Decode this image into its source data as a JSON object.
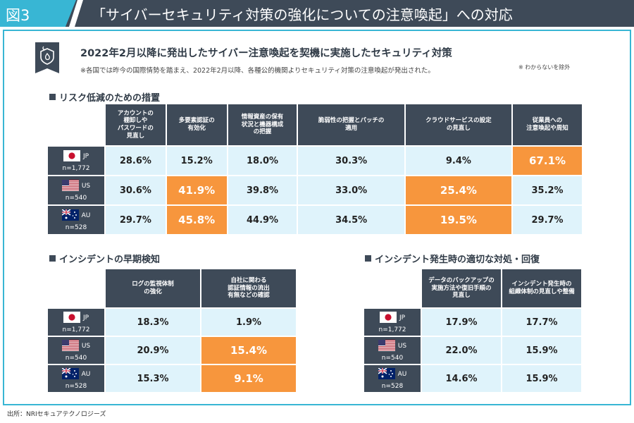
{
  "header": {
    "figure_label": "図3",
    "title": "「サイバーセキュリティ対策の強化についての注意喚起」への対応"
  },
  "main": {
    "title": "2022年2月以降に発出したサイバー注意喚起を契機に実施したセキュリティ対策",
    "note": "※各国では昨今の国際情勢を踏まえ、2022年2月以降、各種公的機関よりセキュリティ対策の注意喚起が発出された。"
  },
  "risk": {
    "title": "リスク低減のための措置",
    "note": "※ わからないを除外",
    "columns": [
      "アカウントの\n棚卸しや\nパスワードの\n見直し",
      "多要素認証の\n有効化",
      "情報資産の保有\n状況と機器構成\nの把握",
      "脆弱性の把握とパッチの\n適用",
      "クラウドサービスの設定\nの見直し",
      "従業員への\n注意喚起や周知"
    ],
    "rows": [
      {
        "country": "JP",
        "n": "n=1,772",
        "flag_icon": "japan-flag-icon",
        "values": [
          "28.6%",
          "15.2%",
          "18.0%",
          "30.3%",
          "9.4%",
          "67.1%"
        ],
        "highlight": [
          false,
          false,
          false,
          false,
          false,
          true
        ]
      },
      {
        "country": "US",
        "n": "n=540",
        "flag_icon": "us-flag-icon",
        "values": [
          "30.6%",
          "41.9%",
          "39.8%",
          "33.0%",
          "25.4%",
          "35.2%"
        ],
        "highlight": [
          false,
          true,
          false,
          false,
          true,
          false
        ]
      },
      {
        "country": "AU",
        "n": "n=528",
        "flag_icon": "australia-flag-icon",
        "values": [
          "29.7%",
          "45.8%",
          "44.9%",
          "34.5%",
          "19.5%",
          "29.7%"
        ],
        "highlight": [
          false,
          true,
          false,
          false,
          true,
          false
        ]
      }
    ]
  },
  "early": {
    "title": "インシデントの早期検知",
    "columns": [
      "ログの監視体制\nの強化",
      "自社に関わる\n認証情報の流出\n有無などの確認"
    ],
    "rows": [
      {
        "country": "JP",
        "n": "n=1,772",
        "flag_icon": "japan-flag-icon",
        "values": [
          "18.3%",
          "1.9%"
        ],
        "highlight": [
          false,
          false
        ]
      },
      {
        "country": "US",
        "n": "n=540",
        "flag_icon": "us-flag-icon",
        "values": [
          "20.9%",
          "15.4%"
        ],
        "highlight": [
          false,
          true
        ]
      },
      {
        "country": "AU",
        "n": "n=528",
        "flag_icon": "australia-flag-icon",
        "values": [
          "15.3%",
          "9.1%"
        ],
        "highlight": [
          false,
          true
        ]
      }
    ]
  },
  "response": {
    "title": "インシデント発生時の適切な対処・回復",
    "columns": [
      "データのバックアップの\n実施方法や復旧手順の\n見直し",
      "インシデント発生時の\n組織体制の見直しや整備"
    ],
    "rows": [
      {
        "country": "JP",
        "n": "n=1,772",
        "flag_icon": "japan-flag-icon",
        "values": [
          "17.9%",
          "17.7%"
        ],
        "highlight": [
          false,
          false
        ]
      },
      {
        "country": "US",
        "n": "n=540",
        "flag_icon": "us-flag-icon",
        "values": [
          "22.0%",
          "15.9%"
        ],
        "highlight": [
          false,
          false
        ]
      },
      {
        "country": "AU",
        "n": "n=528",
        "flag_icon": "australia-flag-icon",
        "values": [
          "14.6%",
          "15.9%"
        ],
        "highlight": [
          false,
          false
        ]
      }
    ]
  },
  "footer": {
    "source": "出所：NRIセキュアテクノロジーズ"
  },
  "colors": {
    "dark_navy": "#3e4a58",
    "accent_cyan": "#38b6d4",
    "cell_light_blue": "#dff3fb",
    "highlight_orange": "#f7963d"
  }
}
